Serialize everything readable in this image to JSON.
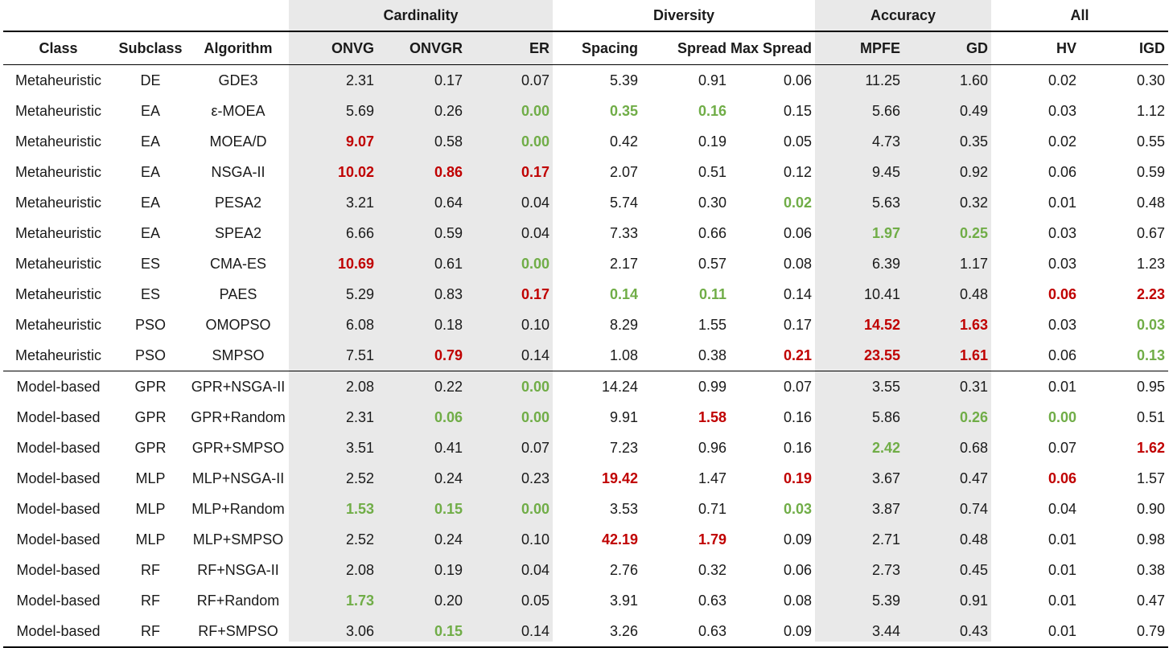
{
  "groups": {
    "cardinality": "Cardinality",
    "diversity": "Diversity",
    "accuracy": "Accuracy",
    "all": "All"
  },
  "columns": {
    "class": "Class",
    "subclass": "Subclass",
    "algorithm": "Algorithm",
    "onvg": "ONVG",
    "onvgr": "ONVGR",
    "er": "ER",
    "spacing": "Spacing",
    "spread": "Spread",
    "max_spread": "Max Spread",
    "mpfe": "MPFE",
    "gd": "GD",
    "hv": "HV",
    "igd": "IGD"
  },
  "colors": {
    "best": "#70ad47",
    "worst": "#c00000",
    "shade": "#e9e9e9"
  },
  "rows": [
    {
      "class": "Metaheuristic",
      "subclass": "DE",
      "algorithm": "GDE3",
      "values": [
        "2.31",
        "0.17",
        "0.07",
        "5.39",
        "0.91",
        "0.06",
        "11.25",
        "1.60",
        "0.02",
        "0.30"
      ],
      "marks": [
        "",
        "",
        "",
        "",
        "",
        "",
        "",
        "",
        "",
        ""
      ]
    },
    {
      "class": "Metaheuristic",
      "subclass": "EA",
      "algorithm": "ε-MOEA",
      "values": [
        "5.69",
        "0.26",
        "0.00",
        "0.35",
        "0.16",
        "0.15",
        "5.66",
        "0.49",
        "0.03",
        "1.12"
      ],
      "marks": [
        "",
        "",
        "best",
        "best",
        "best",
        "",
        "",
        "",
        "",
        ""
      ]
    },
    {
      "class": "Metaheuristic",
      "subclass": "EA",
      "algorithm": "MOEA/D",
      "values": [
        "9.07",
        "0.58",
        "0.00",
        "0.42",
        "0.19",
        "0.05",
        "4.73",
        "0.35",
        "0.02",
        "0.55"
      ],
      "marks": [
        "worst",
        "",
        "best",
        "",
        "",
        "",
        "",
        "",
        "",
        ""
      ]
    },
    {
      "class": "Metaheuristic",
      "subclass": "EA",
      "algorithm": "NSGA-II",
      "values": [
        "10.02",
        "0.86",
        "0.17",
        "2.07",
        "0.51",
        "0.12",
        "9.45",
        "0.92",
        "0.06",
        "0.59"
      ],
      "marks": [
        "worst",
        "worst",
        "worst",
        "",
        "",
        "",
        "",
        "",
        "",
        ""
      ]
    },
    {
      "class": "Metaheuristic",
      "subclass": "EA",
      "algorithm": "PESA2",
      "values": [
        "3.21",
        "0.64",
        "0.04",
        "5.74",
        "0.30",
        "0.02",
        "5.63",
        "0.32",
        "0.01",
        "0.48"
      ],
      "marks": [
        "",
        "",
        "",
        "",
        "",
        "best",
        "",
        "",
        "",
        ""
      ]
    },
    {
      "class": "Metaheuristic",
      "subclass": "EA",
      "algorithm": "SPEA2",
      "values": [
        "6.66",
        "0.59",
        "0.04",
        "7.33",
        "0.66",
        "0.06",
        "1.97",
        "0.25",
        "0.03",
        "0.67"
      ],
      "marks": [
        "",
        "",
        "",
        "",
        "",
        "",
        "best",
        "best",
        "",
        ""
      ]
    },
    {
      "class": "Metaheuristic",
      "subclass": "ES",
      "algorithm": "CMA-ES",
      "values": [
        "10.69",
        "0.61",
        "0.00",
        "2.17",
        "0.57",
        "0.08",
        "6.39",
        "1.17",
        "0.03",
        "1.23"
      ],
      "marks": [
        "worst",
        "",
        "best",
        "",
        "",
        "",
        "",
        "",
        "",
        ""
      ]
    },
    {
      "class": "Metaheuristic",
      "subclass": "ES",
      "algorithm": "PAES",
      "values": [
        "5.29",
        "0.83",
        "0.17",
        "0.14",
        "0.11",
        "0.14",
        "10.41",
        "0.48",
        "0.06",
        "2.23"
      ],
      "marks": [
        "",
        "",
        "worst",
        "best",
        "best",
        "",
        "",
        "",
        "worst",
        "worst"
      ]
    },
    {
      "class": "Metaheuristic",
      "subclass": "PSO",
      "algorithm": "OMOPSO",
      "values": [
        "6.08",
        "0.18",
        "0.10",
        "8.29",
        "1.55",
        "0.17",
        "14.52",
        "1.63",
        "0.03",
        "0.03"
      ],
      "marks": [
        "",
        "",
        "",
        "",
        "",
        "",
        "worst",
        "worst",
        "",
        "best"
      ]
    },
    {
      "class": "Metaheuristic",
      "subclass": "PSO",
      "algorithm": "SMPSO",
      "values": [
        "7.51",
        "0.79",
        "0.14",
        "1.08",
        "0.38",
        "0.21",
        "23.55",
        "1.61",
        "0.06",
        "0.13"
      ],
      "marks": [
        "",
        "worst",
        "",
        "",
        "",
        "worst",
        "worst",
        "worst",
        "",
        "best"
      ]
    },
    {
      "class": "Model-based",
      "subclass": "GPR",
      "algorithm": "GPR+NSGA-II",
      "values": [
        "2.08",
        "0.22",
        "0.00",
        "14.24",
        "0.99",
        "0.07",
        "3.55",
        "0.31",
        "0.01",
        "0.95"
      ],
      "marks": [
        "",
        "",
        "best",
        "",
        "",
        "",
        "",
        "",
        "",
        ""
      ]
    },
    {
      "class": "Model-based",
      "subclass": "GPR",
      "algorithm": "GPR+Random",
      "values": [
        "2.31",
        "0.06",
        "0.00",
        "9.91",
        "1.58",
        "0.16",
        "5.86",
        "0.26",
        "0.00",
        "0.51"
      ],
      "marks": [
        "",
        "best",
        "best",
        "",
        "worst",
        "",
        "",
        "best",
        "best",
        ""
      ]
    },
    {
      "class": "Model-based",
      "subclass": "GPR",
      "algorithm": "GPR+SMPSO",
      "values": [
        "3.51",
        "0.41",
        "0.07",
        "7.23",
        "0.96",
        "0.16",
        "2.42",
        "0.68",
        "0.07",
        "1.62"
      ],
      "marks": [
        "",
        "",
        "",
        "",
        "",
        "",
        "best",
        "",
        "",
        "worst"
      ]
    },
    {
      "class": "Model-based",
      "subclass": "MLP",
      "algorithm": "MLP+NSGA-II",
      "values": [
        "2.52",
        "0.24",
        "0.23",
        "19.42",
        "1.47",
        "0.19",
        "3.67",
        "0.47",
        "0.06",
        "1.57"
      ],
      "marks": [
        "",
        "",
        "",
        "worst",
        "",
        "worst",
        "",
        "",
        "worst",
        ""
      ]
    },
    {
      "class": "Model-based",
      "subclass": "MLP",
      "algorithm": "MLP+Random",
      "values": [
        "1.53",
        "0.15",
        "0.00",
        "3.53",
        "0.71",
        "0.03",
        "3.87",
        "0.74",
        "0.04",
        "0.90"
      ],
      "marks": [
        "best",
        "best",
        "best",
        "",
        "",
        "best",
        "",
        "",
        "",
        ""
      ]
    },
    {
      "class": "Model-based",
      "subclass": "MLP",
      "algorithm": "MLP+SMPSO",
      "values": [
        "2.52",
        "0.24",
        "0.10",
        "42.19",
        "1.79",
        "0.09",
        "2.71",
        "0.48",
        "0.01",
        "0.98"
      ],
      "marks": [
        "",
        "",
        "",
        "worst",
        "worst",
        "",
        "",
        "",
        "",
        ""
      ]
    },
    {
      "class": "Model-based",
      "subclass": "RF",
      "algorithm": "RF+NSGA-II",
      "values": [
        "2.08",
        "0.19",
        "0.04",
        "2.76",
        "0.32",
        "0.06",
        "2.73",
        "0.45",
        "0.01",
        "0.38"
      ],
      "marks": [
        "",
        "",
        "",
        "",
        "",
        "",
        "",
        "",
        "",
        ""
      ]
    },
    {
      "class": "Model-based",
      "subclass": "RF",
      "algorithm": "RF+Random",
      "values": [
        "1.73",
        "0.20",
        "0.05",
        "3.91",
        "0.63",
        "0.08",
        "5.39",
        "0.91",
        "0.01",
        "0.47"
      ],
      "marks": [
        "best",
        "",
        "",
        "",
        "",
        "",
        "",
        "",
        "",
        ""
      ]
    },
    {
      "class": "Model-based",
      "subclass": "RF",
      "algorithm": "RF+SMPSO",
      "values": [
        "3.06",
        "0.15",
        "0.14",
        "3.26",
        "0.63",
        "0.09",
        "3.44",
        "0.43",
        "0.01",
        "0.79"
      ],
      "marks": [
        "",
        "best",
        "",
        "",
        "",
        "",
        "",
        "",
        "",
        ""
      ]
    }
  ]
}
